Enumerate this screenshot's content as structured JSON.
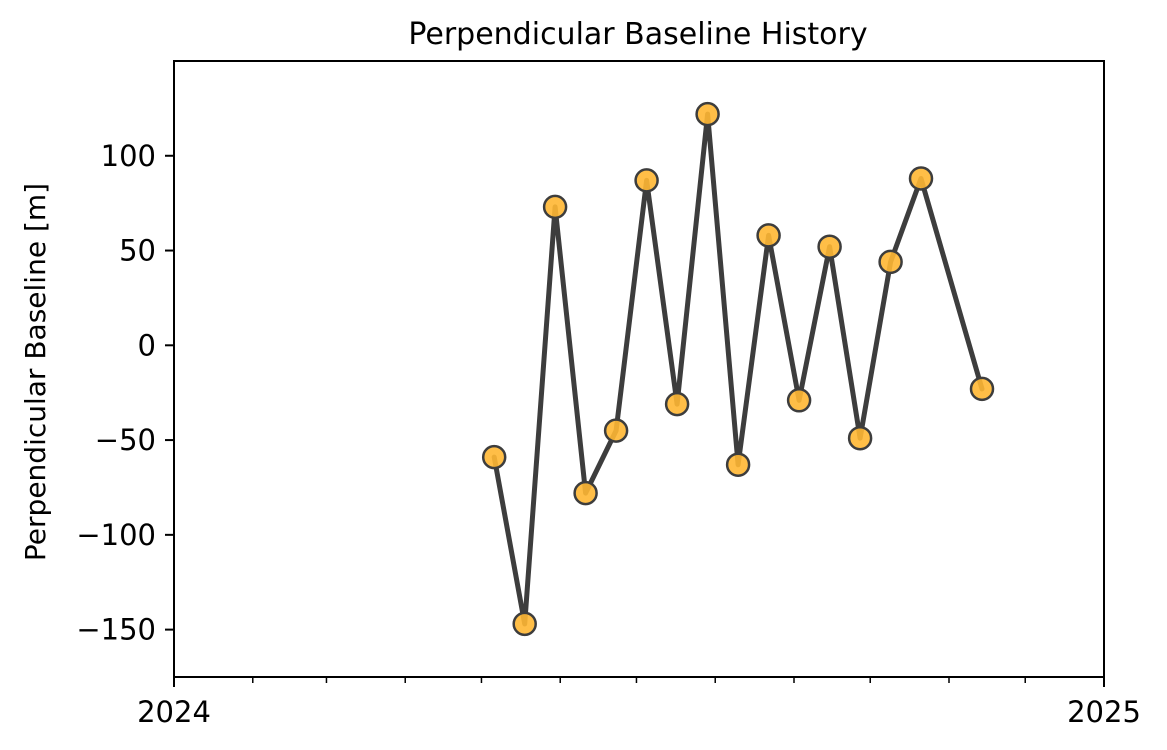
{
  "chart_data": {
    "type": "line",
    "title": "Perpendicular Baseline History",
    "xlabel": "",
    "ylabel": "Perpendicular Baseline [m]",
    "x_axis": {
      "kind": "date",
      "range": [
        "2024-01-01",
        "2025-01-01"
      ],
      "major_tick_labels": [
        "2024",
        "2025"
      ],
      "minor_ticks": "monthly"
    },
    "y_axis": {
      "range": [
        -175,
        150
      ],
      "ticks": [
        -150,
        -100,
        -50,
        0,
        50,
        100
      ],
      "tick_labels": [
        "−150",
        "−100",
        "−50",
        "0",
        "50",
        "100"
      ]
    },
    "grid": false,
    "legend": "none",
    "series": [
      {
        "color": "#3d3d3d",
        "marker_color": "#ffb733",
        "marker_edge_color": "#3d3d3d",
        "points": [
          {
            "x": "2024-05-06",
            "y": -59
          },
          {
            "x": "2024-05-18",
            "y": -147
          },
          {
            "x": "2024-05-30",
            "y": 73
          },
          {
            "x": "2024-06-11",
            "y": -78
          },
          {
            "x": "2024-06-23",
            "y": -45
          },
          {
            "x": "2024-07-05",
            "y": 87
          },
          {
            "x": "2024-07-17",
            "y": -31
          },
          {
            "x": "2024-07-29",
            "y": 122
          },
          {
            "x": "2024-08-10",
            "y": -63
          },
          {
            "x": "2024-08-22",
            "y": 58
          },
          {
            "x": "2024-09-03",
            "y": -29
          },
          {
            "x": "2024-09-15",
            "y": 52
          },
          {
            "x": "2024-09-27",
            "y": -49
          },
          {
            "x": "2024-10-09",
            "y": 44
          },
          {
            "x": "2024-10-21",
            "y": 88
          },
          {
            "x": "2024-11-14",
            "y": -23
          }
        ]
      }
    ]
  }
}
